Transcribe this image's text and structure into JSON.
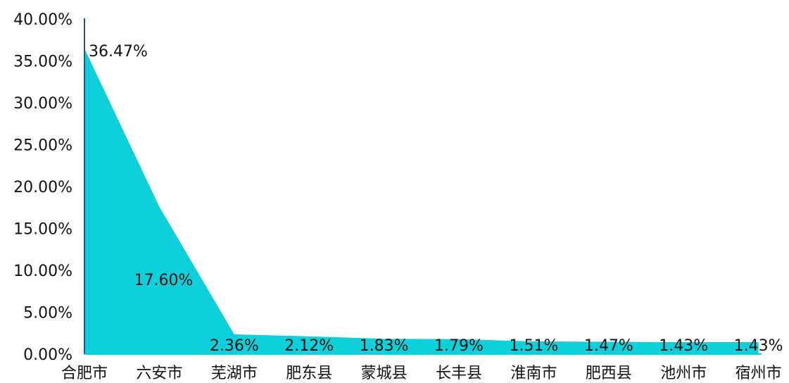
{
  "colors": {
    "area_fill": "#0dd0db",
    "axis_line": "#2b4fa3",
    "text": "#111111",
    "background": "#ffffff"
  },
  "chart_data": {
    "type": "area",
    "title": "",
    "xlabel": "",
    "ylabel": "",
    "categories": [
      "合肥市",
      "六安市",
      "芜湖市",
      "肥东县",
      "蒙城县",
      "长丰县",
      "淮南市",
      "肥西县",
      "池州市",
      "宿州市"
    ],
    "series": [
      {
        "values": [
          36.47,
          17.6,
          2.36,
          2.12,
          1.83,
          1.79,
          1.51,
          1.47,
          1.43,
          1.43
        ]
      }
    ],
    "data_labels": [
      "36.47%",
      "17.60%",
      "2.36%",
      "2.12%",
      "1.83%",
      "1.79%",
      "1.51%",
      "1.47%",
      "1.43%",
      "1.43%"
    ],
    "ylim": [
      0,
      40
    ],
    "yticks": [
      0,
      5,
      10,
      15,
      20,
      25,
      30,
      35,
      40
    ],
    "ytick_labels": [
      "0.00%",
      "5.00%",
      "10.00%",
      "15.00%",
      "20.00%",
      "25.00%",
      "30.00%",
      "35.00%",
      "40.00%"
    ],
    "grid": false,
    "legend": "none"
  }
}
